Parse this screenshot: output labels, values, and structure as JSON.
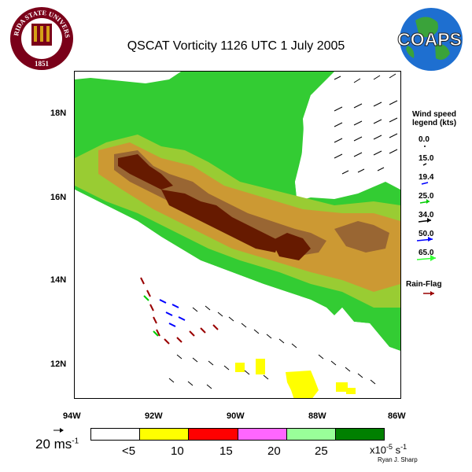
{
  "title": "QSCAT Vorticity 1126 UTC 1 July 2005",
  "lat_labels": [
    "18N",
    "16N",
    "14N",
    "12N"
  ],
  "lon_labels": [
    "94W",
    "92W",
    "90W",
    "88W",
    "86W"
  ],
  "fsu_logo": {
    "text": "FLORIDA STATE UNIVERSITY",
    "year": "1851"
  },
  "coaps_logo": {
    "text": "COAPS"
  },
  "wind_legend": {
    "title_line1": "Wind speed",
    "title_line2": "legend (kts)",
    "entries": [
      {
        "value": "0.0",
        "color": "#000000"
      },
      {
        "value": "15.0",
        "color": "#000000"
      },
      {
        "value": "19.4",
        "color": "#000000"
      },
      {
        "value": "25.0",
        "color": "#00cc00"
      },
      {
        "value": "34.0",
        "color": "#000000"
      },
      {
        "value": "50.0",
        "color": "#0000ff"
      },
      {
        "value": "65.0",
        "color": "#33ff33"
      }
    ],
    "rain_flag_label": "Rain-Flag",
    "rain_flag_color": "#990000"
  },
  "scale_arrow_label": "20 ms",
  "scale_arrow_exponent": "-1",
  "colorbar": {
    "colors": [
      "#ffffff",
      "#ffff00",
      "#ff0000",
      "#ff66ff",
      "#99ff99",
      "#008000"
    ],
    "labels": [
      "<5",
      "10",
      "15",
      "20",
      "25"
    ],
    "units_prefix": "x10",
    "units_exponent": "-5",
    "units_suffix": " s",
    "units_suffix_exponent": "-1"
  },
  "credit": "Ryan J. Sharp"
}
